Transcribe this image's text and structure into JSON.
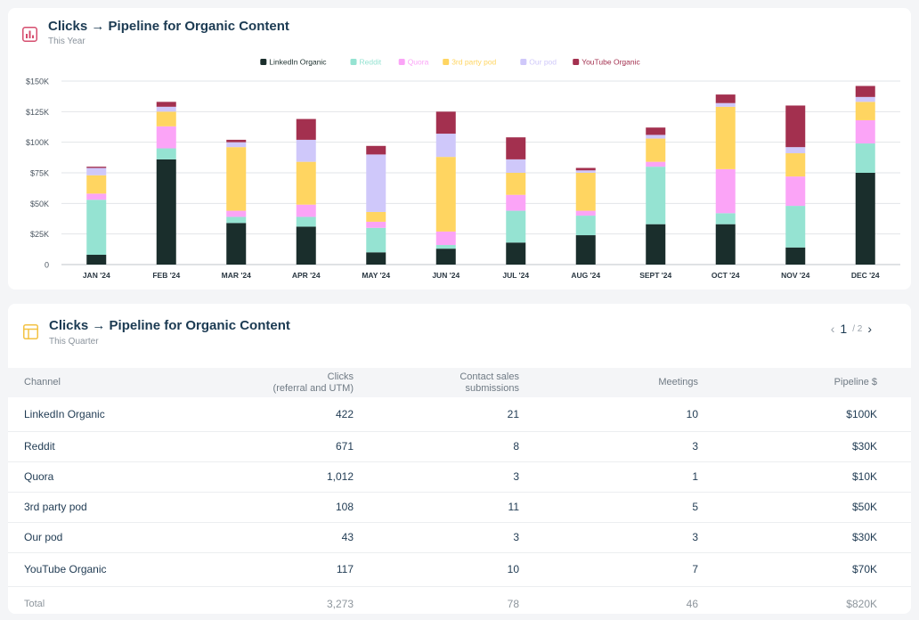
{
  "chart_card": {
    "title": "Clicks → Pipeline for Organic Content",
    "subtitle": "This Year",
    "icon": "bar-chart-icon"
  },
  "table_card": {
    "title": "Clicks → Pipeline for Organic Content",
    "subtitle": "This Quarter",
    "icon": "table-icon",
    "pagination": {
      "current": "1",
      "total": "/ 2"
    },
    "columns": [
      {
        "line1": "Channel",
        "line2": ""
      },
      {
        "line1": "Clicks",
        "line2": "(referral and UTM)"
      },
      {
        "line1": "Contact sales",
        "line2": "submissions"
      },
      {
        "line1": "Meetings",
        "line2": ""
      },
      {
        "line1": "Pipeline $",
        "line2": ""
      }
    ],
    "rows": [
      {
        "channel": "LinkedIn Organic",
        "clicks": "422",
        "submissions": "21",
        "meetings": "10",
        "pipeline": "$100K"
      },
      {
        "channel": "Reddit",
        "clicks": "671",
        "submissions": "8",
        "meetings": "3",
        "pipeline": "$30K"
      },
      {
        "channel": "Quora",
        "clicks": "1,012",
        "submissions": "3",
        "meetings": "1",
        "pipeline": "$10K"
      },
      {
        "channel": "3rd party pod",
        "clicks": "108",
        "submissions": "11",
        "meetings": "5",
        "pipeline": "$50K"
      },
      {
        "channel": "Our pod",
        "clicks": "43",
        "submissions": "3",
        "meetings": "3",
        "pipeline": "$30K"
      },
      {
        "channel": "YouTube Organic",
        "clicks": "117",
        "submissions": "10",
        "meetings": "7",
        "pipeline": "$70K"
      }
    ],
    "total": {
      "label": "Total",
      "clicks": "3,273",
      "submissions": "78",
      "meetings": "46",
      "pipeline": "$820K"
    }
  },
  "chart_data": {
    "type": "bar",
    "stacked": true,
    "title": "Clicks → Pipeline for Organic Content",
    "subtitle": "This Year",
    "categories": [
      "JAN '24",
      "FEB '24",
      "MAR '24",
      "APR '24",
      "MAY '24",
      "JUN '24",
      "JUL '24",
      "AUG '24",
      "SEPT '24",
      "OCT '24",
      "NOV '24",
      "DEC '24"
    ],
    "y_ticks": [
      "0",
      "$25K",
      "$50K",
      "$75K",
      "$100K",
      "$125K",
      "$150K"
    ],
    "ylim": [
      0,
      150000
    ],
    "grid": true,
    "legend_position": "top-center",
    "series": [
      {
        "name": "LinkedIn Organic",
        "color": "#1a2e2c",
        "values": [
          8000,
          86000,
          34000,
          31000,
          10000,
          13000,
          18000,
          24000,
          33000,
          33000,
          14000,
          75000
        ]
      },
      {
        "name": "Reddit",
        "color": "#95e3d2",
        "values": [
          45000,
          9000,
          5000,
          8000,
          20000,
          3000,
          26000,
          16000,
          47000,
          9000,
          34000,
          24000
        ]
      },
      {
        "name": "Quora",
        "color": "#fba4f7",
        "values": [
          5000,
          18000,
          5000,
          10000,
          5000,
          11000,
          13000,
          4000,
          4000,
          36000,
          24000,
          19000
        ]
      },
      {
        "name": "3rd party pod",
        "color": "#ffd561",
        "values": [
          15000,
          12000,
          52000,
          35000,
          8000,
          61000,
          18000,
          31000,
          19000,
          51000,
          19000,
          15000
        ]
      },
      {
        "name": "Our pod",
        "color": "#cfc8fa",
        "values": [
          6000,
          4000,
          4000,
          18000,
          47000,
          19000,
          11000,
          2000,
          3000,
          3000,
          5000,
          4000
        ]
      },
      {
        "name": "YouTube Organic",
        "color": "#a3304f",
        "values": [
          1000,
          4000,
          2000,
          17000,
          7000,
          18000,
          18000,
          2000,
          6000,
          7000,
          34000,
          9000
        ]
      }
    ]
  }
}
